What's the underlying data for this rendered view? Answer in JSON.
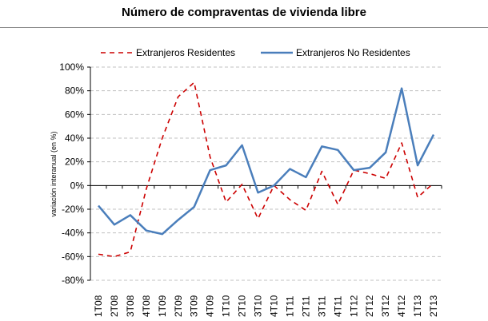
{
  "chart_data": {
    "type": "line",
    "title": "Número de compraventas de vivienda libre",
    "xlabel": "",
    "ylabel": "variación interanual (en %)",
    "ylim": [
      -80,
      100
    ],
    "yticks": [
      "-80%",
      "-60%",
      "-40%",
      "-20%",
      "0%",
      "20%",
      "40%",
      "60%",
      "80%",
      "100%"
    ],
    "grid": true,
    "legend": "top",
    "categories": [
      "1T08",
      "2T08",
      "3T08",
      "4T08",
      "1T09",
      "2T09",
      "3T09",
      "4T09",
      "1T10",
      "2T10",
      "3T10",
      "4T10",
      "1T11",
      "2T11",
      "3T11",
      "4T11",
      "1T12",
      "2T12",
      "3T12",
      "4T12",
      "1T13",
      "2T13"
    ],
    "series": [
      {
        "name": "Extranjeros Residentes",
        "color": "#cc0000",
        "style": "dashed",
        "values": [
          -58,
          -60,
          -56,
          -3,
          40,
          75,
          87,
          24,
          -14,
          1,
          -28,
          0,
          -12,
          -21,
          12,
          -16,
          13,
          10,
          6,
          36,
          -10,
          2
        ]
      },
      {
        "name": "Extranjeros No Residentes",
        "color": "#4a7ebb",
        "style": "solid",
        "values": [
          -17,
          -33,
          -25,
          -38,
          -41,
          -29,
          -18,
          13,
          17,
          34,
          -6,
          0,
          14,
          7,
          33,
          30,
          13,
          15,
          28,
          82,
          17,
          43
        ]
      }
    ]
  }
}
